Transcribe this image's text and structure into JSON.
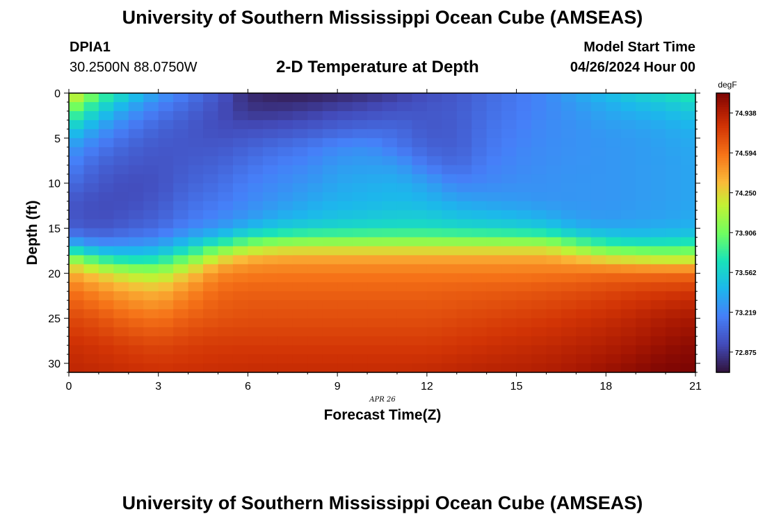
{
  "header": {
    "title": "University of Southern Mississippi Ocean Cube (AMSEAS)",
    "station_id": "DPIA1",
    "coordinates": "30.2500N  88.0750W",
    "subtitle": "2-D Temperature at Depth",
    "model_start_label": "Model Start Time",
    "model_start_value": "04/26/2024 Hour 00"
  },
  "footer": {
    "title": "University of Southern Mississippi Ocean Cube (AMSEAS)"
  },
  "chart_data": {
    "type": "heatmap",
    "title": "2-D Temperature at Depth",
    "xlabel": "Forecast Time(Z)",
    "ylabel": "Depth (ft)",
    "date_label": "APR 26",
    "xlim": [
      0,
      21
    ],
    "ylim": [
      0,
      31
    ],
    "x_ticks": [
      0,
      3,
      6,
      9,
      12,
      15,
      18,
      21
    ],
    "y_ticks": [
      0,
      5,
      10,
      15,
      20,
      25,
      30
    ],
    "colorbar": {
      "unit": "degF",
      "min": 72.7,
      "max": 75.11,
      "tick_values": [
        74.938,
        74.594,
        74.25,
        73.906,
        73.562,
        73.219,
        72.875
      ],
      "tick_labels": [
        "74.938",
        "74.594",
        "74.250",
        "73.906",
        "73.562",
        "73.219",
        "72.875"
      ]
    },
    "profile_depths_ft": [
      0,
      2,
      4,
      6,
      8,
      10,
      12,
      14,
      15,
      16,
      17,
      18,
      19,
      20,
      22,
      25,
      28,
      31
    ],
    "profile_hours": [
      0,
      1,
      2,
      3,
      4,
      5,
      6,
      7,
      8,
      9,
      10,
      11,
      12,
      13,
      14,
      15,
      16,
      17,
      18,
      19,
      20,
      21
    ],
    "temperature_degF": [
      [
        74.3,
        73.9,
        73.55,
        73.3,
        73.2,
        73.1,
        73.0,
        73.0,
        73.05,
        73.2,
        73.5,
        73.9,
        74.2,
        74.4,
        74.6,
        74.75,
        74.85,
        74.9
      ],
      [
        73.85,
        73.55,
        73.3,
        73.15,
        73.05,
        73.0,
        72.95,
        72.95,
        73.0,
        73.1,
        73.3,
        73.6,
        73.95,
        74.25,
        74.5,
        74.7,
        74.82,
        74.88
      ],
      [
        73.55,
        73.3,
        73.15,
        73.05,
        73.0,
        72.95,
        72.95,
        73.0,
        73.05,
        73.15,
        73.3,
        73.5,
        73.8,
        74.1,
        74.4,
        74.62,
        74.78,
        74.86
      ],
      [
        73.3,
        73.15,
        73.05,
        73.0,
        72.98,
        72.97,
        73.0,
        73.05,
        73.1,
        73.2,
        73.35,
        73.55,
        73.8,
        74.05,
        74.35,
        74.58,
        74.75,
        74.84
      ],
      [
        73.15,
        73.05,
        73.0,
        73.0,
        73.02,
        73.05,
        73.1,
        73.15,
        73.22,
        73.35,
        73.55,
        73.8,
        74.05,
        74.28,
        74.5,
        74.66,
        74.78,
        74.85
      ],
      [
        73.0,
        72.95,
        72.95,
        73.0,
        73.05,
        73.1,
        73.15,
        73.22,
        73.3,
        73.5,
        73.8,
        74.1,
        74.35,
        74.5,
        74.62,
        74.7,
        74.8,
        74.86
      ],
      [
        72.8,
        72.85,
        72.95,
        73.05,
        73.12,
        73.18,
        73.22,
        73.3,
        73.45,
        73.7,
        74.0,
        74.3,
        74.45,
        74.55,
        74.65,
        74.72,
        74.8,
        74.87
      ],
      [
        72.75,
        72.85,
        72.97,
        73.1,
        73.18,
        73.23,
        73.28,
        73.4,
        73.55,
        73.8,
        74.1,
        74.35,
        74.48,
        74.56,
        74.65,
        74.72,
        74.8,
        74.87
      ],
      [
        72.75,
        72.88,
        73.0,
        73.15,
        73.22,
        73.28,
        73.35,
        73.45,
        73.6,
        73.85,
        74.12,
        74.36,
        74.48,
        74.56,
        74.65,
        74.72,
        74.8,
        74.87
      ],
      [
        72.78,
        72.92,
        73.05,
        73.22,
        73.3,
        73.35,
        73.4,
        73.5,
        73.62,
        73.86,
        74.12,
        74.36,
        74.48,
        74.56,
        74.65,
        74.72,
        74.8,
        74.87
      ],
      [
        72.82,
        72.95,
        73.08,
        73.25,
        73.32,
        73.38,
        73.42,
        73.52,
        73.64,
        73.87,
        74.12,
        74.36,
        74.48,
        74.56,
        74.65,
        74.72,
        74.8,
        74.87
      ],
      [
        72.88,
        72.98,
        73.08,
        73.15,
        73.3,
        73.4,
        73.45,
        73.55,
        73.65,
        73.88,
        74.12,
        74.36,
        74.48,
        74.56,
        74.65,
        74.72,
        74.8,
        74.87
      ],
      [
        72.95,
        73.0,
        73.0,
        73.05,
        73.15,
        73.32,
        73.42,
        73.55,
        73.65,
        73.88,
        74.12,
        74.36,
        74.48,
        74.56,
        74.65,
        74.72,
        74.8,
        74.88
      ],
      [
        73.0,
        73.02,
        73.02,
        73.03,
        73.08,
        73.2,
        73.35,
        73.5,
        73.62,
        73.87,
        74.12,
        74.36,
        74.48,
        74.56,
        74.66,
        74.74,
        74.82,
        74.9
      ],
      [
        73.08,
        73.1,
        73.12,
        73.14,
        73.18,
        73.22,
        73.32,
        73.48,
        73.6,
        73.86,
        74.12,
        74.36,
        74.48,
        74.56,
        74.67,
        74.76,
        74.84,
        74.92
      ],
      [
        73.15,
        73.16,
        73.18,
        73.2,
        73.22,
        73.25,
        73.3,
        73.45,
        73.58,
        73.85,
        74.12,
        74.36,
        74.48,
        74.56,
        74.68,
        74.78,
        74.86,
        74.93
      ],
      [
        73.22,
        73.22,
        73.23,
        73.24,
        73.25,
        73.26,
        73.28,
        73.4,
        73.55,
        73.82,
        74.12,
        74.36,
        74.48,
        74.57,
        74.7,
        74.8,
        74.88,
        74.95
      ],
      [
        73.35,
        73.28,
        73.26,
        73.26,
        73.27,
        73.28,
        73.28,
        73.32,
        73.42,
        73.65,
        73.95,
        74.25,
        74.45,
        74.58,
        74.72,
        74.83,
        74.91,
        74.98
      ],
      [
        73.45,
        73.35,
        73.3,
        73.28,
        73.28,
        73.28,
        73.28,
        73.3,
        73.38,
        73.55,
        73.8,
        74.1,
        74.4,
        74.6,
        74.75,
        74.86,
        74.94,
        75.02
      ],
      [
        73.55,
        73.4,
        73.32,
        73.3,
        73.3,
        73.3,
        73.3,
        73.32,
        73.38,
        73.5,
        73.75,
        74.05,
        74.35,
        74.6,
        74.78,
        74.9,
        74.98,
        75.06
      ],
      [
        73.62,
        73.45,
        73.36,
        73.33,
        73.32,
        73.32,
        73.32,
        73.34,
        73.4,
        73.52,
        73.75,
        74.0,
        74.32,
        74.6,
        74.8,
        74.95,
        75.03,
        75.1
      ],
      [
        73.72,
        73.52,
        73.4,
        73.36,
        73.35,
        73.35,
        73.35,
        73.37,
        73.42,
        73.55,
        73.78,
        74.02,
        74.32,
        74.6,
        74.82,
        74.98,
        75.06,
        75.11
      ]
    ]
  }
}
